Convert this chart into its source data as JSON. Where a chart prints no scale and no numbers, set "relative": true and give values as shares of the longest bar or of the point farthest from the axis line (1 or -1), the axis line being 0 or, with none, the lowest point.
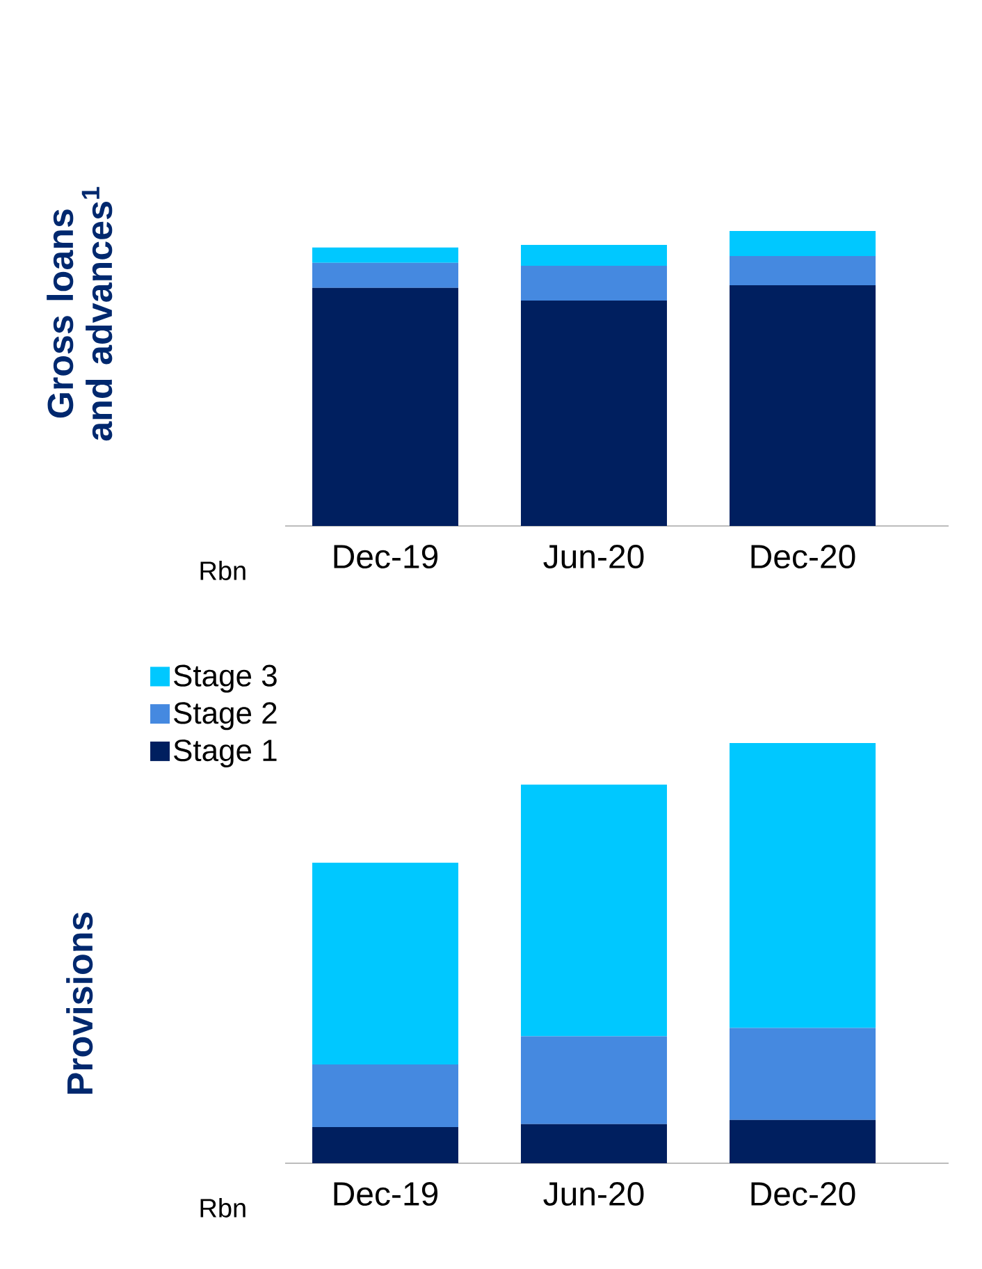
{
  "chart_data": [
    {
      "type": "bar",
      "stacked": true,
      "relative": true,
      "ylabel": "Gross loans and advances$^{1}$",
      "categories": [
        "Dec-19",
        "Jun-20",
        "Dec-20"
      ],
      "legend": false,
      "annotations": [
        "Rbn"
      ],
      "series": [
        {
          "color": "#001f5f",
          "values": [
            0.807,
            0.764,
            0.816
          ]
        },
        {
          "color": "#4589e0",
          "values": [
            0.085,
            0.118,
            0.099
          ]
        },
        {
          "color": "#00c8ff",
          "values": [
            0.052,
            0.071,
            0.085
          ]
        }
      ]
    },
    {
      "type": "bar",
      "stacked": true,
      "relative": true,
      "ylabel": "Provisions",
      "categories": [
        "Dec-19",
        "Jun-20",
        "Dec-20"
      ],
      "legend": "top left",
      "annotations": [
        "Rbn"
      ],
      "series": [
        {
          "name": "Stage 1",
          "color": "#001f5f",
          "values": [
            0.086,
            0.093,
            0.103
          ]
        },
        {
          "name": "Stage 2",
          "color": "#4589e0",
          "values": [
            0.149,
            0.209,
            0.219
          ]
        },
        {
          "name": "Stage 3",
          "color": "#00c8ff",
          "values": [
            0.48,
            0.599,
            0.678
          ]
        }
      ]
    }
  ]
}
